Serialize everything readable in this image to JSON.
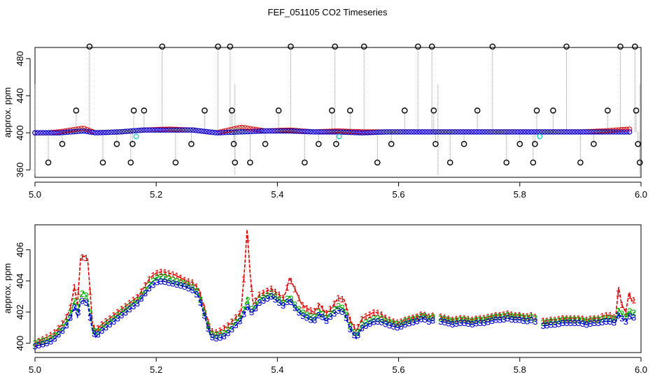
{
  "title": "FEF_051105  CO2 Timeseries",
  "colors": {
    "series1": "#dd0000",
    "series2": "#00aa00",
    "series3": "#0000cc",
    "outlier": "#000000",
    "flag": "#22cccc",
    "vline": "#8a8a8a"
  },
  "chart_data": [
    {
      "type": "scatter",
      "name": "overview",
      "title": "FEF_051105  CO2 Timeseries",
      "xlabel": "",
      "ylabel": "approx. ppm",
      "xlim": [
        5.0,
        6.0
      ],
      "ylim": [
        352,
        492
      ],
      "xticks": [
        "5.0",
        "5.2",
        "5.4",
        "5.6",
        "5.8",
        "6.0"
      ],
      "yticks": [
        "360",
        "400",
        "440",
        "480"
      ],
      "baseline_series": [
        {
          "name": "1",
          "color": "#dd0000",
          "x": [
            5.0,
            5.02,
            5.04,
            5.06,
            5.08,
            5.1,
            5.14,
            5.18,
            5.22,
            5.26,
            5.3,
            5.34,
            5.38,
            5.42,
            5.46,
            5.5,
            5.54,
            5.58,
            5.62,
            5.66,
            5.7,
            5.74,
            5.78,
            5.82,
            5.86,
            5.9,
            5.94,
            5.98
          ],
          "y": [
            400,
            400,
            401,
            403,
            405,
            400,
            401,
            403,
            404,
            403,
            400,
            406,
            402,
            403,
            401,
            402,
            401,
            401,
            401,
            401,
            401,
            401,
            401,
            401,
            401,
            401,
            402,
            404
          ]
        },
        {
          "name": "3",
          "color": "#0000cc",
          "x": [
            5.0,
            5.02,
            5.04,
            5.06,
            5.08,
            5.1,
            5.14,
            5.18,
            5.22,
            5.26,
            5.3,
            5.34,
            5.38,
            5.42,
            5.46,
            5.5,
            5.54,
            5.58,
            5.62,
            5.66,
            5.7,
            5.74,
            5.78,
            5.82,
            5.86,
            5.9,
            5.94,
            5.98
          ],
          "y": [
            400,
            400,
            400,
            401,
            402,
            400,
            401,
            403,
            403,
            403,
            400,
            401,
            402,
            402,
            401,
            401,
            400,
            401,
            401,
            401,
            401,
            401,
            401,
            401,
            401,
            401,
            401,
            401
          ]
        }
      ],
      "outliers": {
        "x": [
          5.022,
          5.045,
          5.068,
          5.09,
          5.112,
          5.135,
          5.158,
          5.161,
          5.163,
          5.18,
          5.21,
          5.232,
          5.258,
          5.28,
          5.302,
          5.322,
          5.325,
          5.328,
          5.33,
          5.355,
          5.38,
          5.402,
          5.422,
          5.445,
          5.468,
          5.49,
          5.495,
          5.497,
          5.52,
          5.543,
          5.565,
          5.588,
          5.61,
          5.632,
          5.655,
          5.658,
          5.661,
          5.685,
          5.708,
          5.73,
          5.755,
          5.778,
          5.8,
          5.822,
          5.825,
          5.828,
          5.855,
          5.877,
          5.9,
          5.922,
          5.945,
          5.966,
          5.99,
          5.992,
          5.995,
          5.998
        ],
        "y": [
          368,
          388,
          424,
          493,
          368,
          388,
          368,
          388,
          424,
          424,
          493,
          368,
          388,
          424,
          493,
          493,
          424,
          388,
          368,
          368,
          388,
          424,
          493,
          368,
          388,
          424,
          493,
          388,
          424,
          493,
          368,
          388,
          424,
          493,
          493,
          424,
          388,
          368,
          388,
          424,
          493,
          368,
          388,
          368,
          388,
          424,
          424,
          493,
          368,
          388,
          424,
          493,
          493,
          424,
          388,
          368
        ]
      },
      "flags": {
        "x": [
          5.167,
          5.502,
          5.833
        ],
        "y": [
          396,
          396,
          396
        ]
      }
    },
    {
      "type": "line",
      "name": "detail",
      "xlabel": "",
      "ylabel": "approx. ppm",
      "xlim": [
        5.0,
        6.0
      ],
      "ylim": [
        399.4,
        407.6
      ],
      "xticks": [
        "5.0",
        "5.2",
        "5.4",
        "5.6",
        "5.8",
        "6.0"
      ],
      "yticks": [
        "400",
        "402",
        "404",
        "406"
      ],
      "gaps": [
        [
          5.662,
          5.668
        ],
        [
          5.826,
          5.834
        ]
      ],
      "series": [
        {
          "name": "1",
          "label": "1",
          "color": "#dd0000",
          "x": [
            5.0,
            5.01,
            5.02,
            5.03,
            5.04,
            5.05,
            5.058,
            5.065,
            5.07,
            5.075,
            5.08,
            5.087,
            5.095,
            5.1,
            5.11,
            5.12,
            5.13,
            5.14,
            5.15,
            5.16,
            5.17,
            5.18,
            5.19,
            5.2,
            5.21,
            5.22,
            5.23,
            5.24,
            5.25,
            5.26,
            5.27,
            5.28,
            5.29,
            5.3,
            5.31,
            5.32,
            5.33,
            5.34,
            5.346,
            5.35,
            5.355,
            5.36,
            5.37,
            5.38,
            5.39,
            5.4,
            5.41,
            5.415,
            5.42,
            5.425,
            5.43,
            5.44,
            5.45,
            5.46,
            5.47,
            5.48,
            5.49,
            5.5,
            5.51,
            5.52,
            5.53,
            5.54,
            5.55,
            5.56,
            5.57,
            5.58,
            5.59,
            5.6,
            5.61,
            5.62,
            5.63,
            5.64,
            5.65,
            5.66,
            5.67,
            5.68,
            5.69,
            5.7,
            5.71,
            5.72,
            5.73,
            5.74,
            5.75,
            5.76,
            5.77,
            5.78,
            5.79,
            5.8,
            5.81,
            5.82,
            5.84,
            5.85,
            5.86,
            5.87,
            5.88,
            5.89,
            5.9,
            5.91,
            5.92,
            5.93,
            5.94,
            5.95,
            5.958,
            5.963,
            5.968,
            5.975,
            5.98,
            5.985,
            5.99
          ],
          "y": [
            400.0,
            400.2,
            400.4,
            400.6,
            401.0,
            401.5,
            402.2,
            403.6,
            402.4,
            405.4,
            405.6,
            405.4,
            401.2,
            400.8,
            401.2,
            401.5,
            401.8,
            402.1,
            402.4,
            402.7,
            403.0,
            403.6,
            404.2,
            404.5,
            404.6,
            404.5,
            404.4,
            404.2,
            404.0,
            403.9,
            403.5,
            402.2,
            400.8,
            400.7,
            400.9,
            401.2,
            401.6,
            402.0,
            404.8,
            407.3,
            404.5,
            402.5,
            403.1,
            403.3,
            403.5,
            403.2,
            402.9,
            403.4,
            404.2,
            403.8,
            403.4,
            402.5,
            402.2,
            402.0,
            402.5,
            401.9,
            402.3,
            402.9,
            402.8,
            401.5,
            400.8,
            401.6,
            401.8,
            402.0,
            401.9,
            401.6,
            401.4,
            401.3,
            401.5,
            401.6,
            401.7,
            401.9,
            401.7,
            401.8,
            401.7,
            401.6,
            401.5,
            401.6,
            401.6,
            401.5,
            401.6,
            401.6,
            401.7,
            401.8,
            401.8,
            401.9,
            401.8,
            401.8,
            401.7,
            401.8,
            401.4,
            401.5,
            401.5,
            401.6,
            401.6,
            401.6,
            401.6,
            401.5,
            401.6,
            401.6,
            401.8,
            401.8,
            401.6,
            403.6,
            402.5,
            402.0,
            403.2,
            402.7,
            402.8
          ]
        },
        {
          "name": "2",
          "label": "2",
          "color": "#00aa00",
          "x": [
            5.0,
            5.01,
            5.02,
            5.03,
            5.04,
            5.05,
            5.058,
            5.065,
            5.07,
            5.075,
            5.08,
            5.087,
            5.095,
            5.1,
            5.11,
            5.12,
            5.13,
            5.14,
            5.15,
            5.16,
            5.17,
            5.18,
            5.19,
            5.2,
            5.21,
            5.22,
            5.23,
            5.24,
            5.25,
            5.26,
            5.27,
            5.28,
            5.29,
            5.3,
            5.31,
            5.32,
            5.33,
            5.34,
            5.346,
            5.35,
            5.355,
            5.36,
            5.37,
            5.38,
            5.39,
            5.4,
            5.41,
            5.415,
            5.42,
            5.425,
            5.43,
            5.44,
            5.45,
            5.46,
            5.47,
            5.48,
            5.49,
            5.5,
            5.51,
            5.52,
            5.53,
            5.54,
            5.55,
            5.56,
            5.57,
            5.58,
            5.59,
            5.6,
            5.61,
            5.62,
            5.63,
            5.64,
            5.65,
            5.66,
            5.67,
            5.68,
            5.69,
            5.7,
            5.71,
            5.72,
            5.73,
            5.74,
            5.75,
            5.76,
            5.77,
            5.78,
            5.79,
            5.8,
            5.81,
            5.82,
            5.84,
            5.85,
            5.86,
            5.87,
            5.88,
            5.89,
            5.9,
            5.91,
            5.92,
            5.93,
            5.94,
            5.95,
            5.958,
            5.963,
            5.968,
            5.975,
            5.98,
            5.985,
            5.99
          ],
          "y": [
            400.0,
            400.1,
            400.2,
            400.4,
            400.8,
            401.2,
            401.9,
            402.7,
            402.0,
            403.0,
            403.3,
            402.9,
            401.0,
            400.6,
            401.0,
            401.3,
            401.6,
            401.9,
            402.2,
            402.5,
            402.8,
            403.3,
            403.8,
            404.2,
            404.3,
            404.2,
            404.0,
            403.9,
            403.8,
            403.6,
            403.2,
            401.9,
            400.6,
            400.5,
            400.6,
            400.9,
            401.3,
            401.7,
            402.3,
            402.9,
            402.2,
            402.2,
            402.8,
            403.0,
            403.2,
            402.9,
            402.6,
            402.8,
            403.0,
            402.7,
            402.4,
            402.0,
            401.8,
            401.6,
            402.1,
            401.6,
            402.0,
            402.4,
            402.2,
            401.1,
            400.5,
            401.2,
            401.4,
            401.6,
            401.6,
            401.4,
            401.3,
            401.2,
            401.4,
            401.5,
            401.6,
            401.8,
            401.6,
            401.7,
            401.6,
            401.5,
            401.4,
            401.5,
            401.5,
            401.4,
            401.5,
            401.5,
            401.6,
            401.7,
            401.7,
            401.8,
            401.7,
            401.7,
            401.6,
            401.7,
            401.3,
            401.4,
            401.4,
            401.5,
            401.5,
            401.5,
            401.5,
            401.4,
            401.5,
            401.5,
            401.6,
            401.6,
            401.5,
            402.2,
            401.9,
            401.7,
            402.1,
            401.9,
            402.0
          ]
        },
        {
          "name": "3",
          "label": "3",
          "color": "#0000cc",
          "x": [
            5.0,
            5.01,
            5.02,
            5.03,
            5.04,
            5.05,
            5.058,
            5.065,
            5.07,
            5.075,
            5.08,
            5.087,
            5.095,
            5.1,
            5.11,
            5.12,
            5.13,
            5.14,
            5.15,
            5.16,
            5.17,
            5.18,
            5.19,
            5.2,
            5.21,
            5.22,
            5.23,
            5.24,
            5.25,
            5.26,
            5.27,
            5.28,
            5.29,
            5.3,
            5.31,
            5.32,
            5.33,
            5.34,
            5.346,
            5.35,
            5.355,
            5.36,
            5.37,
            5.38,
            5.39,
            5.4,
            5.41,
            5.415,
            5.42,
            5.425,
            5.43,
            5.44,
            5.45,
            5.46,
            5.47,
            5.48,
            5.49,
            5.5,
            5.51,
            5.52,
            5.53,
            5.54,
            5.55,
            5.56,
            5.57,
            5.58,
            5.59,
            5.6,
            5.61,
            5.62,
            5.63,
            5.64,
            5.65,
            5.66,
            5.67,
            5.68,
            5.69,
            5.7,
            5.71,
            5.72,
            5.73,
            5.74,
            5.75,
            5.76,
            5.77,
            5.78,
            5.79,
            5.8,
            5.81,
            5.82,
            5.84,
            5.85,
            5.86,
            5.87,
            5.88,
            5.89,
            5.9,
            5.91,
            5.92,
            5.93,
            5.94,
            5.95,
            5.958,
            5.963,
            5.968,
            5.975,
            5.98,
            5.985,
            5.99
          ],
          "y": [
            399.8,
            399.9,
            400.0,
            400.2,
            400.6,
            401.0,
            401.6,
            402.3,
            401.7,
            402.6,
            402.8,
            402.5,
            400.8,
            400.4,
            400.8,
            401.1,
            401.4,
            401.7,
            402.0,
            402.3,
            402.6,
            403.1,
            403.6,
            403.9,
            404.0,
            403.9,
            403.8,
            403.7,
            403.6,
            403.4,
            403.0,
            401.7,
            400.4,
            400.3,
            400.4,
            400.7,
            401.1,
            401.5,
            402.0,
            402.4,
            402.0,
            402.0,
            402.6,
            402.8,
            403.0,
            402.7,
            402.4,
            402.6,
            402.8,
            402.5,
            402.2,
            401.8,
            401.6,
            401.4,
            401.9,
            401.4,
            401.8,
            402.1,
            402.0,
            400.9,
            400.3,
            401.0,
            401.2,
            401.4,
            401.4,
            401.2,
            401.1,
            401.0,
            401.2,
            401.3,
            401.4,
            401.6,
            401.4,
            401.5,
            401.4,
            401.3,
            401.2,
            401.3,
            401.3,
            401.2,
            401.3,
            401.3,
            401.4,
            401.5,
            401.5,
            401.6,
            401.5,
            401.5,
            401.4,
            401.5,
            401.1,
            401.2,
            401.2,
            401.3,
            401.3,
            401.3,
            401.3,
            401.2,
            401.3,
            401.3,
            401.4,
            401.4,
            401.3,
            401.9,
            401.6,
            401.4,
            401.8,
            401.6,
            401.7
          ]
        }
      ]
    }
  ]
}
